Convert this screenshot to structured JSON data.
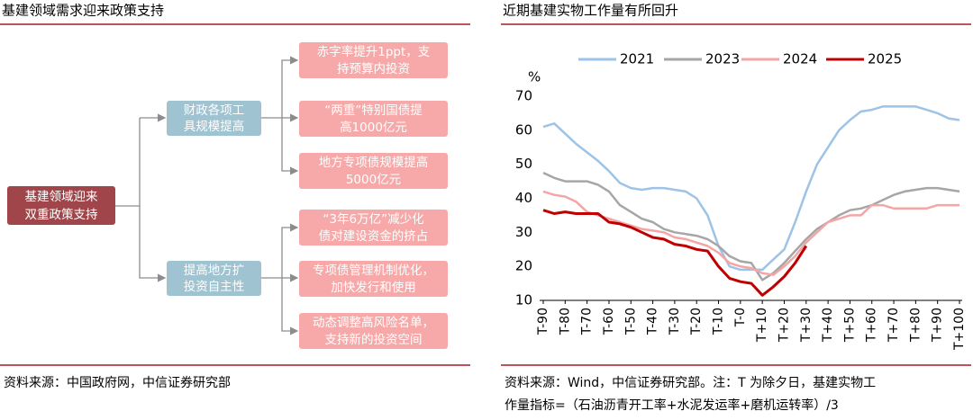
{
  "left": {
    "title": "基建领域需求迎来政策支持",
    "root": [
      "基建领域迎来",
      "双重政策支持"
    ],
    "branches": [
      {
        "label": [
          "财政各项工",
          "具规模提高"
        ],
        "leaves": [
          [
            "赤字率提升1ppt，支",
            "持预算内投资"
          ],
          [
            "“两重”特别国债提",
            "高1000亿元"
          ],
          [
            "地方专项债规模提高",
            "5000亿元"
          ]
        ]
      },
      {
        "label": [
          "提高地方扩",
          "投资自主性"
        ],
        "leaves": [
          [
            "“3年6万亿”减少化",
            "债对建设资金的挤占"
          ],
          [
            "专项债管理机制优化，",
            "加快发行和使用"
          ],
          [
            "动态调整高风险名单，",
            "支持新的投资空间"
          ]
        ]
      }
    ],
    "source": "资料来源：中国政府网，中信证券研究部"
  },
  "chart_data": {
    "type": "line",
    "title": "近期基建实物工作量有所回升",
    "y_label": "%",
    "x": [
      -90,
      -85,
      -80,
      -75,
      -70,
      -65,
      -60,
      -55,
      -50,
      -45,
      -40,
      -35,
      -30,
      -25,
      -20,
      -15,
      -10,
      -5,
      0,
      5,
      10,
      15,
      20,
      25,
      30,
      35,
      40,
      45,
      50,
      55,
      60,
      65,
      70,
      75,
      80,
      85,
      90,
      95,
      100
    ],
    "xlim": [
      -90,
      100
    ],
    "xticks": [
      {
        "value": -90,
        "label": "T-90"
      },
      {
        "value": -80,
        "label": "T-80"
      },
      {
        "value": -70,
        "label": "T-70"
      },
      {
        "value": -60,
        "label": "T-60"
      },
      {
        "value": -50,
        "label": "T-50"
      },
      {
        "value": -40,
        "label": "T-40"
      },
      {
        "value": -30,
        "label": "T-30"
      },
      {
        "value": -20,
        "label": "T-20"
      },
      {
        "value": -10,
        "label": "T-10"
      },
      {
        "value": 0,
        "label": "T-0"
      },
      {
        "value": 10,
        "label": "T+10"
      },
      {
        "value": 20,
        "label": "T+20"
      },
      {
        "value": 30,
        "label": "T+30"
      },
      {
        "value": 40,
        "label": "T+40"
      },
      {
        "value": 50,
        "label": "T+50"
      },
      {
        "value": 60,
        "label": "T+60"
      },
      {
        "value": 70,
        "label": "T+70"
      },
      {
        "value": 80,
        "label": "T+80"
      },
      {
        "value": 90,
        "label": "T+90"
      },
      {
        "value": 100,
        "label": "T+100"
      }
    ],
    "ylim": [
      10,
      70
    ],
    "yticks": [
      10,
      20,
      30,
      40,
      50,
      60,
      70
    ],
    "grid": false,
    "legend": "top",
    "series": [
      {
        "name": "2021",
        "color": "#9dc3e6",
        "width": 2.5,
        "values": [
          61,
          62,
          59,
          56,
          53.5,
          51,
          48,
          44.5,
          43,
          42.5,
          43,
          43,
          42.5,
          42,
          40,
          35,
          26,
          20,
          19,
          19,
          19,
          22,
          25,
          33,
          42,
          50,
          55,
          60,
          63,
          65.5,
          66,
          67,
          67,
          67,
          67,
          66,
          65,
          63.5,
          63
        ]
      },
      {
        "name": "2023",
        "color": "#a6a6a6",
        "width": 2.5,
        "values": [
          47.5,
          46,
          45,
          45,
          45,
          44,
          42,
          38,
          36,
          34,
          33,
          31,
          30,
          29.5,
          29,
          28,
          26,
          23,
          21.5,
          21,
          16,
          18,
          21,
          24.5,
          28,
          31,
          33,
          35,
          36.5,
          37,
          38,
          39.5,
          41,
          42,
          42.5,
          43,
          43,
          42.5,
          42
        ]
      },
      {
        "name": "2024",
        "color": "#f4a6a6",
        "width": 2.5,
        "values": [
          42,
          41,
          40.5,
          39,
          36,
          35,
          34,
          33,
          32,
          31,
          30.5,
          30,
          28.5,
          28,
          27,
          26,
          24,
          21,
          20,
          19.5,
          18,
          17.5,
          20,
          23,
          27,
          30,
          33,
          34,
          35,
          35,
          38,
          38,
          37,
          37,
          37,
          37,
          38,
          38,
          38
        ]
      },
      {
        "name": "2025",
        "color": "#c00000",
        "width": 3,
        "values": [
          36.5,
          35.5,
          36,
          35.5,
          35.5,
          35.5,
          33,
          32.5,
          31.5,
          30,
          28.5,
          28,
          26.5,
          26,
          25,
          24.5,
          20,
          16.5,
          15.5,
          15,
          11.5,
          14,
          17,
          21,
          26,
          null,
          null,
          null,
          null,
          null,
          null,
          null,
          null,
          null,
          null,
          null,
          null,
          null,
          null
        ]
      }
    ],
    "source": [
      "资料来源：Wind，中信证券研究部。注：T 为除夕日，基建实物工",
      "作量指标=（石油沥青开工率+水泥发运率+磨机运转率）/3"
    ]
  }
}
